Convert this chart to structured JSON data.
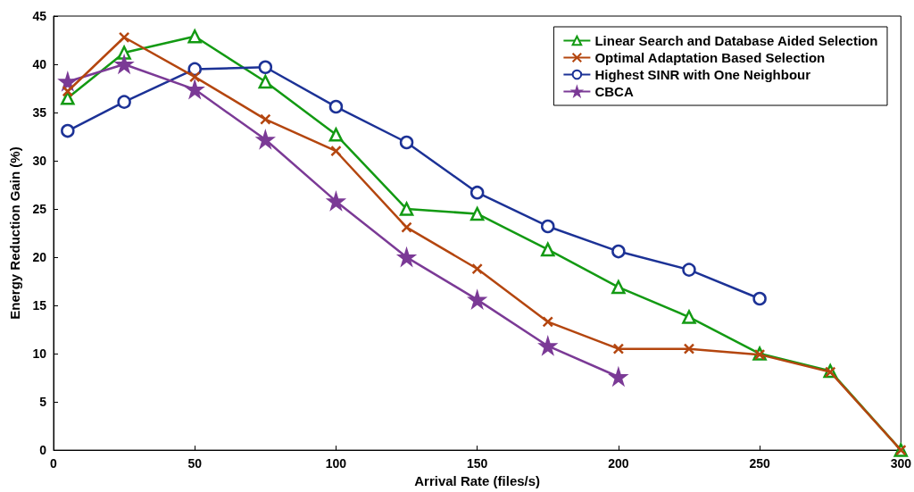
{
  "chart_data": {
    "type": "line",
    "xlabel": "Arrival Rate (files/s)",
    "ylabel": "Energy Reduction Gain (%)",
    "xlim": [
      0,
      300
    ],
    "xticks": [
      0,
      50,
      100,
      150,
      200,
      250,
      300
    ],
    "ylim": [
      0,
      45
    ],
    "yticks": [
      0,
      5,
      10,
      15,
      20,
      25,
      30,
      35,
      40,
      45
    ],
    "grid": false,
    "legend": "top right",
    "series": [
      {
        "name": "Linear Search and Database Aided Selection",
        "color": "#139a13",
        "marker": "triangle",
        "x": [
          5,
          25,
          50,
          75,
          100,
          125,
          150,
          175,
          200,
          225,
          250,
          275,
          300
        ],
        "values": [
          36.5,
          41.2,
          42.9,
          38.2,
          32.7,
          25.0,
          24.5,
          20.8,
          16.9,
          13.8,
          10.0,
          8.2,
          0
        ]
      },
      {
        "name": "Optimal Adaptation Based Selection",
        "color": "#b4460f",
        "marker": "cross",
        "x": [
          5,
          25,
          50,
          75,
          100,
          125,
          150,
          175,
          200,
          225,
          250,
          275,
          300
        ],
        "values": [
          37.2,
          42.8,
          38.7,
          34.3,
          31.0,
          23.1,
          18.8,
          13.3,
          10.5,
          10.5,
          9.9,
          8.1,
          0
        ]
      },
      {
        "name": "Highest SINR with One Neighbour",
        "color": "#1c3296",
        "marker": "circle",
        "x": [
          5,
          25,
          50,
          75,
          100,
          125,
          150,
          175,
          200,
          225,
          250
        ],
        "values": [
          33.1,
          36.1,
          39.5,
          39.7,
          35.6,
          31.9,
          26.7,
          23.2,
          20.6,
          18.7,
          15.7
        ]
      },
      {
        "name": "CBCA",
        "color": "#7b3a96",
        "marker": "star",
        "x": [
          5,
          25,
          50,
          75,
          100,
          125,
          150,
          175,
          200
        ],
        "values": [
          38.2,
          40.0,
          37.4,
          32.2,
          25.8,
          20.0,
          15.6,
          10.8,
          7.6
        ]
      }
    ]
  }
}
